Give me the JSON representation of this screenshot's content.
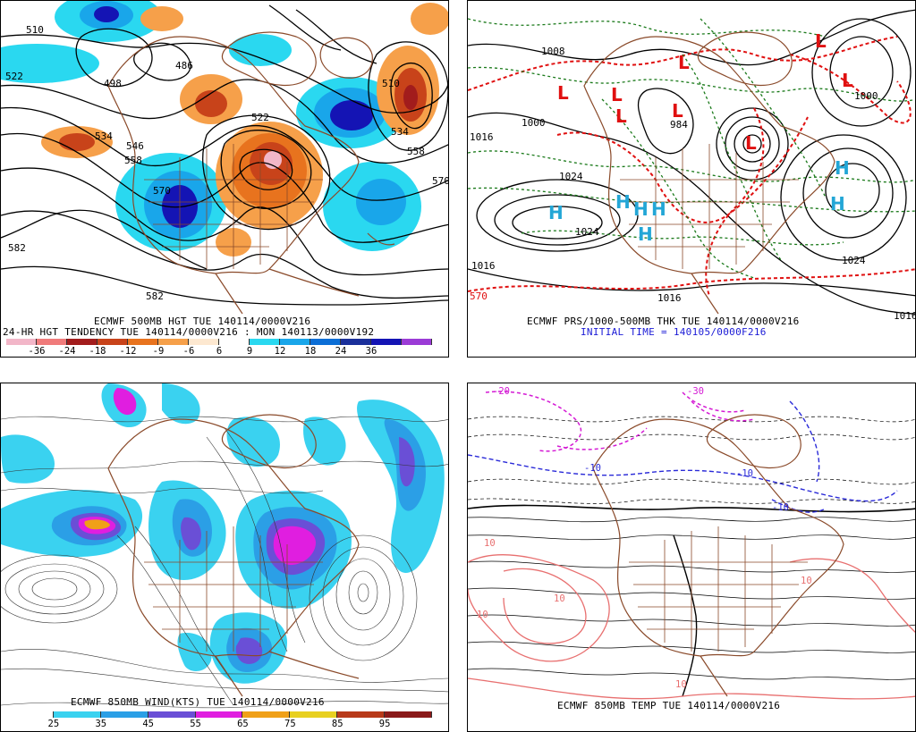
{
  "panels": {
    "p1": {
      "caption1": "ECMWF 500MB HGT TUE 140114/0000V216",
      "caption2": "24-HR HGT TENDENCY TUE 140114/0000V216 : MON 140113/0000V192",
      "scale_labels": [
        "-36",
        "-24",
        "-18",
        "-12",
        "-9",
        "-6",
        "6",
        "9",
        "12",
        "18",
        "24",
        "36"
      ],
      "scale_colors": [
        "#f2b6c8",
        "#f07b7b",
        "#a21c1c",
        "#c8431a",
        "#e8731e",
        "#f6a04a",
        "#fde8d0",
        "#ffffff",
        "#2ad8f0",
        "#19a6ea",
        "#0b6ed6",
        "#1a2f9a",
        "#1414b4",
        "#9b3bd6"
      ],
      "contour_labels": [
        "510",
        "522",
        "498",
        "486",
        "534",
        "546",
        "558",
        "570",
        "582",
        "522",
        "510",
        "534",
        "558",
        "582",
        "570"
      ]
    },
    "p2": {
      "caption1": "ECMWF PRS/1000-500MB THK TUE 140114/0000V216",
      "caption2": "INITIAL TIME = 140105/0000F216",
      "high_symbol": "H",
      "low_symbol": "L",
      "contour_labels": [
        "1000",
        "1016",
        "1024",
        "1024",
        "1016",
        "1008",
        "1000",
        "984",
        "1024",
        "1016",
        "570",
        "1016"
      ]
    },
    "p3": {
      "caption1": "ECMWF 850MB WIND(KTS) TUE 140114/0000V216",
      "scale_labels": [
        "25",
        "35",
        "45",
        "55",
        "65",
        "75",
        "85",
        "95"
      ],
      "scale_colors": [
        "#ffffff",
        "#3ad2f0",
        "#2b9fe6",
        "#6a4fd6",
        "#e01ee0",
        "#f0a018",
        "#e8d020",
        "#b83a1a",
        "#8a1a1a"
      ]
    },
    "p4": {
      "caption1": "ECMWF 850MB TEMP TUE 140114/0000V216",
      "contour_labels": [
        "-20",
        "-30",
        "-10",
        "-10",
        "-10",
        "10",
        "10",
        "10",
        "10",
        "10"
      ]
    }
  },
  "colors": {
    "coast": "#8a4a2a",
    "height": "#000000",
    "thickness": "#e01010",
    "pressure": "#1b7a1b",
    "high": "#23a6d6",
    "low": "#e01010",
    "cold": "#2a2ad8",
    "very_cold": "#d41ad4",
    "warm": "#e87070"
  }
}
